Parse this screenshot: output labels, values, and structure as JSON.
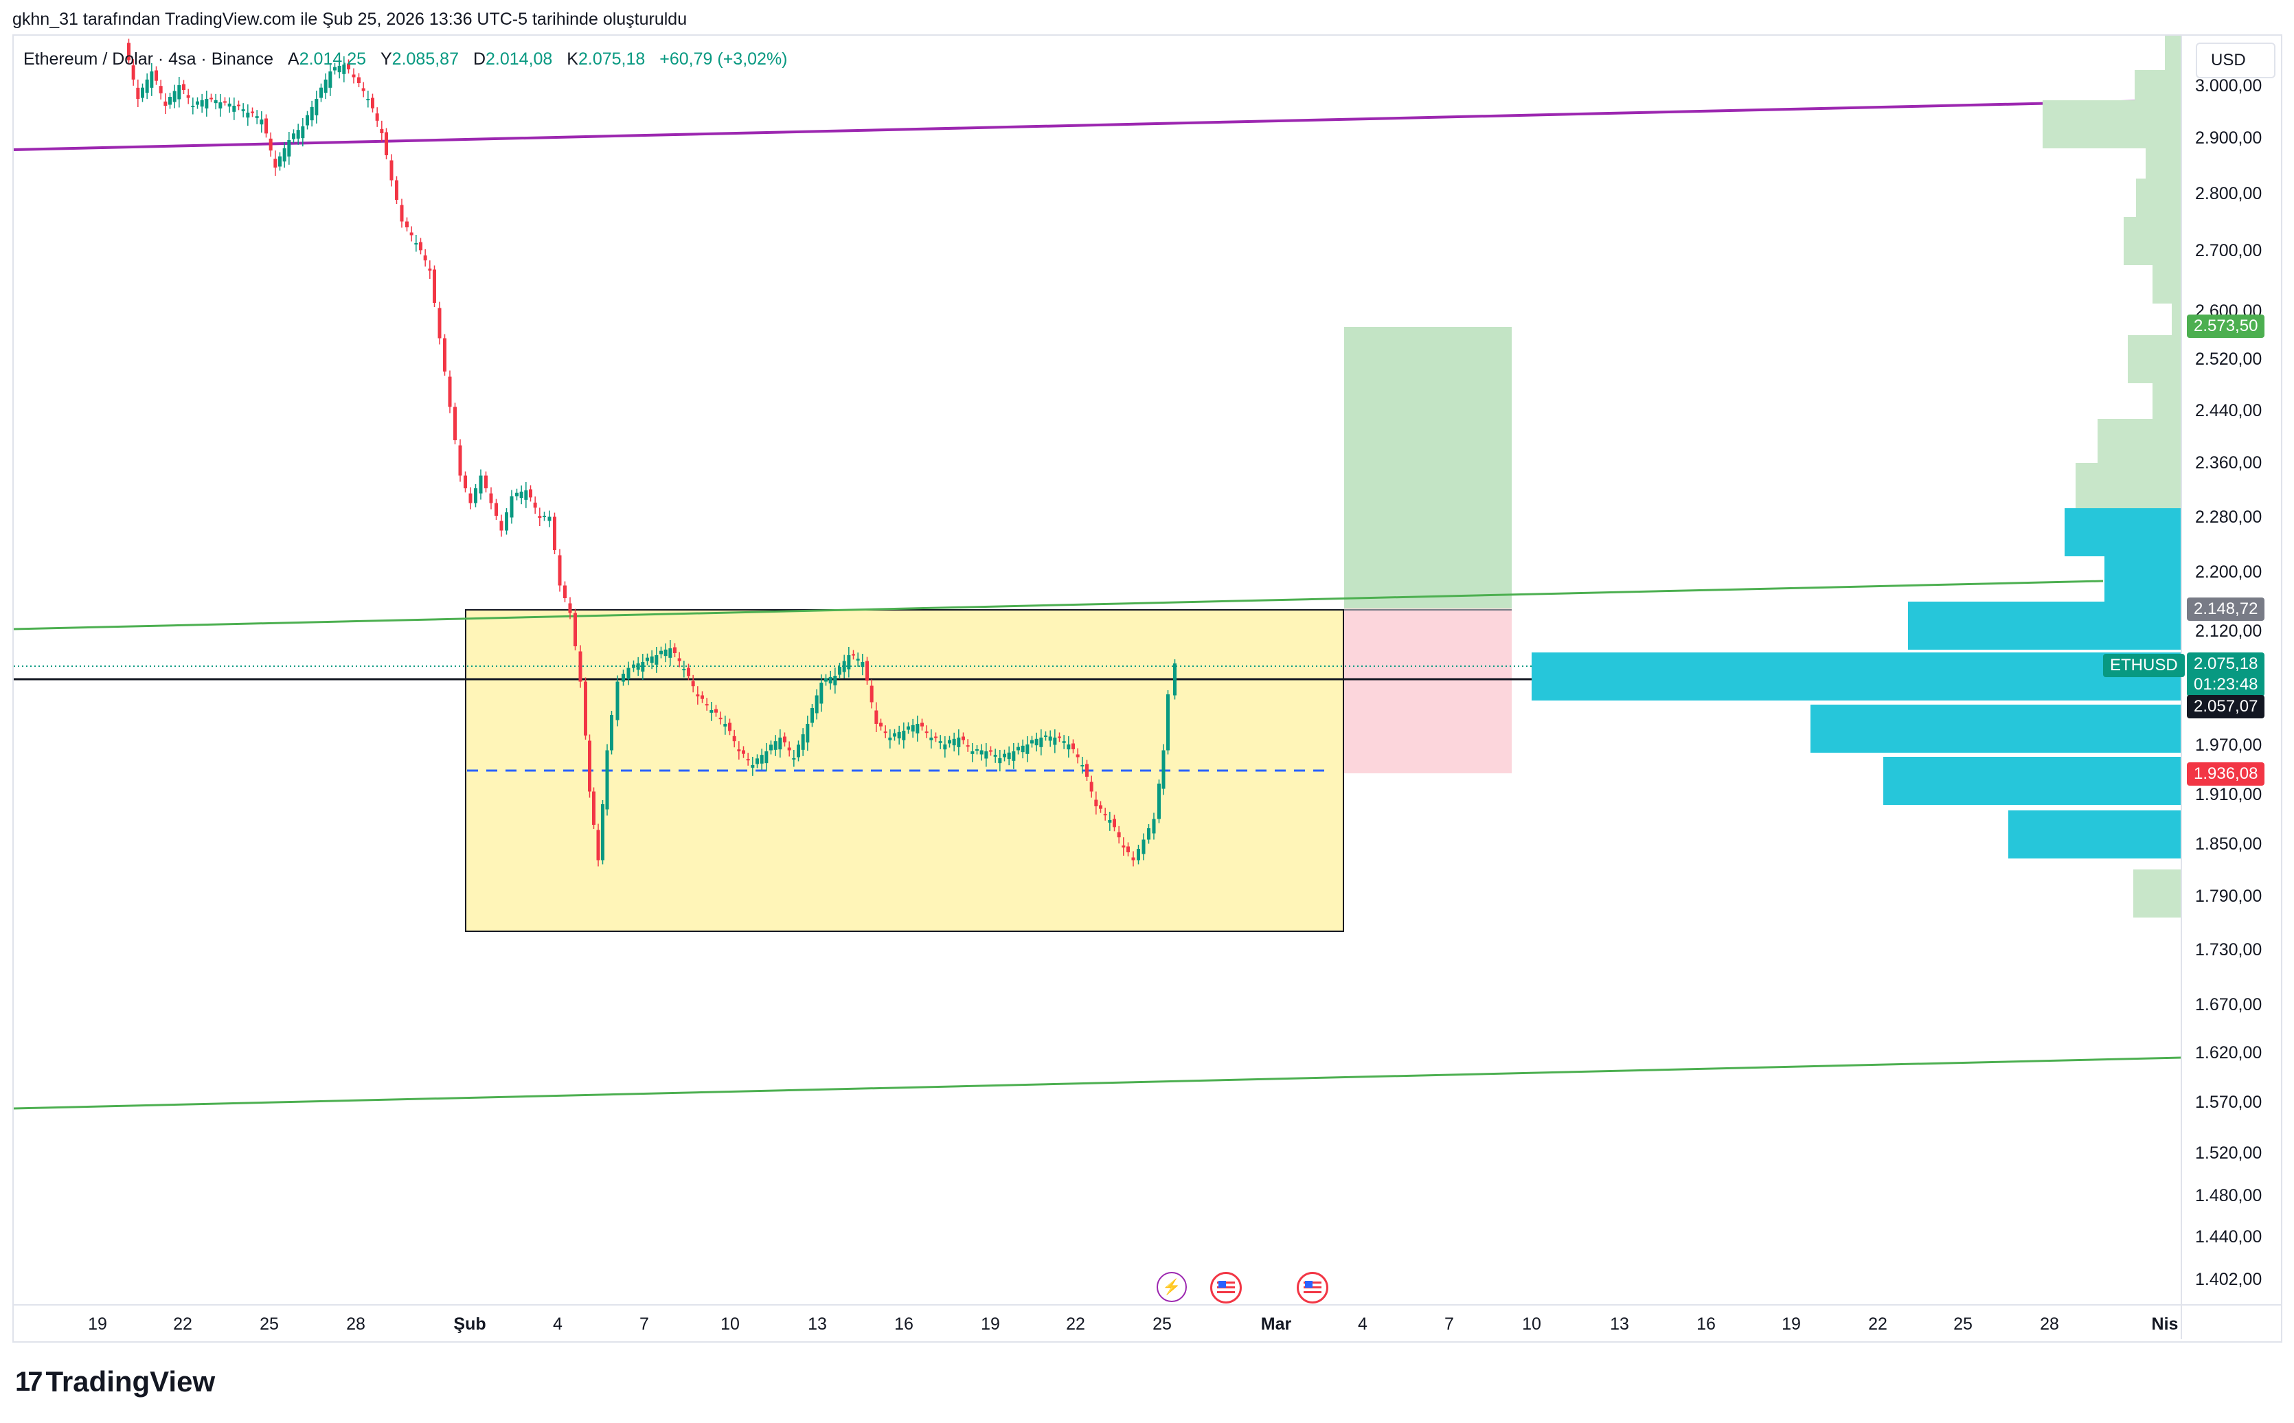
{
  "header": {
    "text": "gkhn_31 tarafından TradingView.com ile Şub 25, 2026 13:36 UTC-5 tarihinde oluşturuldu"
  },
  "legend": {
    "symbol": "Ethereum / Dolar · 4sa · Binance",
    "open_label": "A",
    "open": "2.014,25",
    "high_label": "Y",
    "high": "2.085,87",
    "low_label": "D",
    "low": "2.014,08",
    "close_label": "K",
    "close": "2.075,18",
    "change": "+60,79 (+3,02%)"
  },
  "currency": "USD",
  "price_axis": [
    "3.000,00",
    "2.900,00",
    "2.800,00",
    "2.700,00",
    "2.600,00",
    "2.520,00",
    "2.440,00",
    "2.360,00",
    "2.280,00",
    "2.200,00",
    "2.120,00",
    "1.970,00",
    "1.910,00",
    "1.850,00",
    "1.790,00",
    "1.730,00",
    "1.670,00",
    "1.620,00",
    "1.570,00",
    "1.520,00",
    "1.480,00",
    "1.440,00",
    "1.402,00"
  ],
  "time_axis": [
    "19",
    "22",
    "25",
    "28",
    "Şub",
    "4",
    "7",
    "10",
    "13",
    "16",
    "19",
    "22",
    "25",
    "Mar",
    "4",
    "7",
    "10",
    "13",
    "16",
    "19",
    "22",
    "25",
    "28",
    "Nis"
  ],
  "price_tags": {
    "target": "2.573,50",
    "entry": "2.148,72",
    "last": "2.075,18",
    "countdown": "01:23:48",
    "line": "2.057,07",
    "stop": "1.936,08"
  },
  "ticker": "ETHUSD",
  "colors": {
    "up": "#089981",
    "down": "#f23645",
    "range_box": "#fff5b8",
    "profit": "#c3e4c5",
    "loss": "#fcd6dc",
    "vp_hot": "#26c6da",
    "vp_cold": "#c8e6c9",
    "channel_top": "#9c27b0",
    "trend": "#4caf50"
  },
  "icons": [
    "lightning-icon",
    "us-flag-icon",
    "us-flag-icon"
  ],
  "footer": {
    "brand": "TradingView"
  }
}
